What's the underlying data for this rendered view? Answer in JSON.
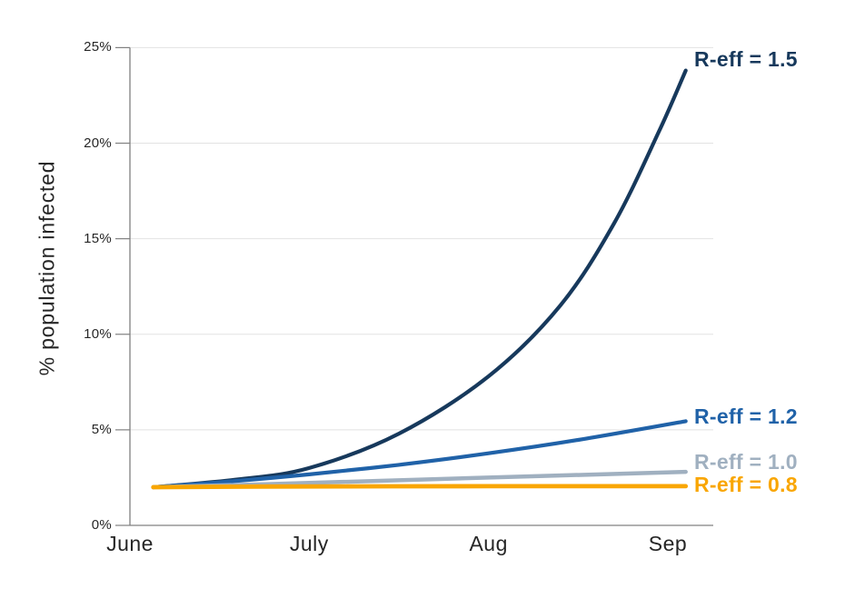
{
  "chart_data": {
    "type": "line",
    "title": "",
    "ylabel": "% population infected",
    "xlabel": "",
    "categories": [
      "June",
      "July",
      "Aug",
      "Sep"
    ],
    "y_tick_labels": [
      "25%",
      "20%",
      "15%",
      "10%",
      "5%",
      "0%"
    ],
    "y_tick_values": [
      25,
      20,
      15,
      10,
      5,
      0
    ],
    "ylim": [
      0,
      25
    ],
    "xlim_months": [
      0,
      3.25
    ],
    "grid": "horizontal",
    "legend_position": "labels-at-line-ends",
    "x_unit": "months (0 = June, 1 = July, 2 = Aug, 3 = Sep)",
    "y_unit": "percent of population infected",
    "series": [
      {
        "name": "R-eff = 1.5",
        "color": "#17395C",
        "width": 4.2,
        "label_dy": -13,
        "points": [
          [
            0.13,
            2.0
          ],
          [
            0.6,
            2.4
          ],
          [
            1.0,
            3.0
          ],
          [
            1.5,
            4.8
          ],
          [
            2.0,
            7.8
          ],
          [
            2.4,
            11.5
          ],
          [
            2.7,
            15.8
          ],
          [
            2.95,
            20.6
          ],
          [
            3.1,
            23.8
          ]
        ]
      },
      {
        "name": "R-eff = 1.2",
        "color": "#2062A8",
        "width": 4.2,
        "label_dy": -5,
        "points": [
          [
            0.13,
            2.0
          ],
          [
            0.6,
            2.33
          ],
          [
            1.0,
            2.67
          ],
          [
            1.5,
            3.17
          ],
          [
            2.0,
            3.77
          ],
          [
            2.5,
            4.47
          ],
          [
            3.1,
            5.45
          ]
        ]
      },
      {
        "name": "R-eff = 1.0",
        "color": "#A0B0C0",
        "width": 4.5,
        "label_dy": -11,
        "points": [
          [
            0.13,
            2.0
          ],
          [
            1.0,
            2.22
          ],
          [
            2.0,
            2.5
          ],
          [
            3.1,
            2.8
          ]
        ]
      },
      {
        "name": "R-eff = 0.8",
        "color": "#F9A602",
        "width": 4.8,
        "label_dy": -2,
        "points": [
          [
            0.13,
            2.0
          ],
          [
            0.7,
            2.03
          ],
          [
            2.0,
            2.05
          ],
          [
            3.1,
            2.05
          ]
        ]
      }
    ]
  },
  "colors": {
    "background": "#FFFFFF",
    "axis": "#808080",
    "grid": "#E2E2E2",
    "text": "#262626"
  }
}
